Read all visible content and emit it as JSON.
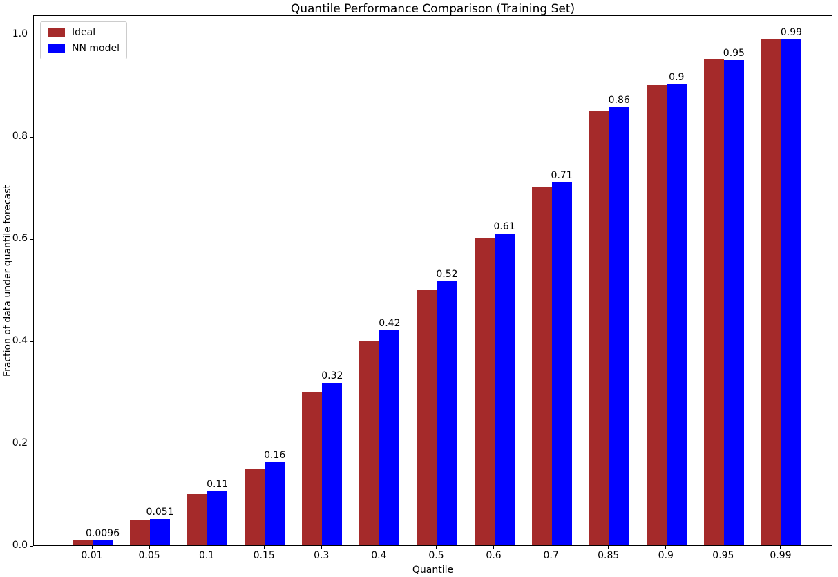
{
  "chart_data": {
    "type": "bar",
    "title": "Quantile Performance Comparison (Training Set)",
    "xlabel": "Quantile",
    "ylabel": "Fraction of data under quantile forecast",
    "categories": [
      "0.01",
      "0.05",
      "0.1",
      "0.15",
      "0.3",
      "0.4",
      "0.5",
      "0.6",
      "0.7",
      "0.85",
      "0.9",
      "0.95",
      "0.99"
    ],
    "series": [
      {
        "name": "Ideal",
        "color": "#A52A2A",
        "values": [
          0.01,
          0.05,
          0.1,
          0.15,
          0.3,
          0.4,
          0.5,
          0.6,
          0.7,
          0.85,
          0.9,
          0.95,
          0.99
        ]
      },
      {
        "name": "NN model",
        "color": "#0000FF",
        "values": [
          0.0096,
          0.051,
          0.106,
          0.162,
          0.318,
          0.421,
          0.516,
          0.61,
          0.709,
          0.857,
          0.902,
          0.949,
          0.989
        ],
        "value_labels": [
          "0.0096",
          "0.051",
          "0.11",
          "0.16",
          "0.32",
          "0.42",
          "0.52",
          "0.61",
          "0.71",
          "0.86",
          "0.9",
          "0.95",
          "0.99"
        ]
      }
    ],
    "yticks": [
      "0.0",
      "0.2",
      "0.4",
      "0.6",
      "0.8",
      "1.0"
    ],
    "ylim": [
      0.0,
      1.038
    ],
    "grid": false,
    "legend_position": "upper-left",
    "legend_entries": [
      "Ideal",
      "NN model"
    ]
  }
}
